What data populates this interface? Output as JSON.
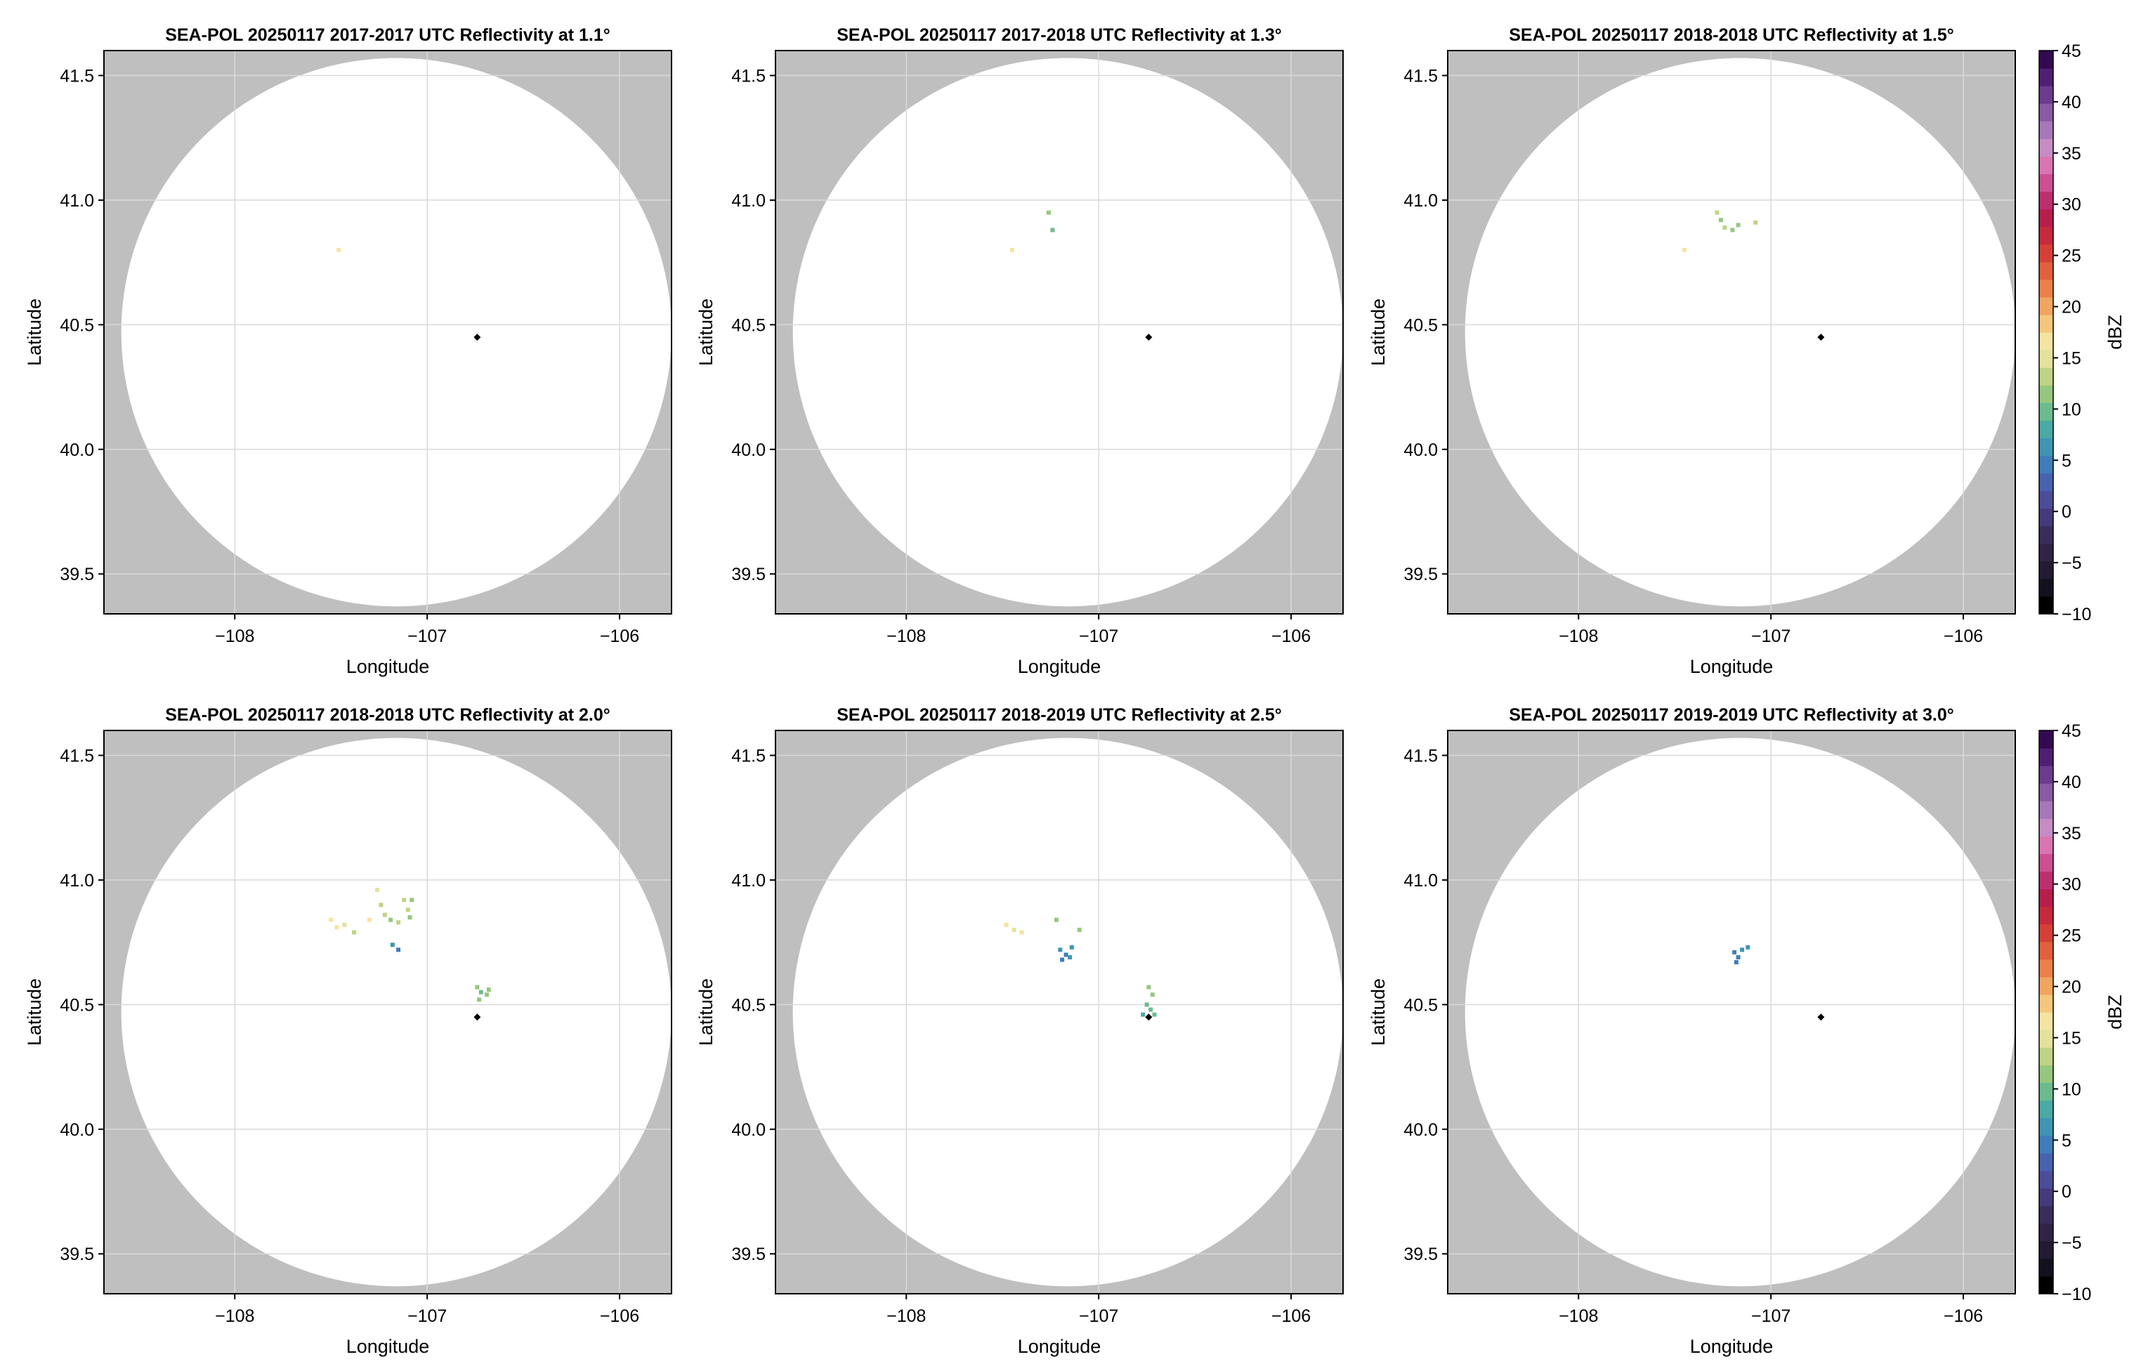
{
  "chart_data": [
    {
      "type": "scatter",
      "title": "SEA-POL 20250117 2017-2017 UTC Reflectivity at 1.1°",
      "xlabel": "Longitude",
      "ylabel": "Latitude",
      "xlim": [
        -108.68,
        -105.73
      ],
      "ylim": [
        39.34,
        41.6
      ],
      "xticks": [
        -108,
        -107,
        -106
      ],
      "yticks": [
        39.5,
        40.0,
        40.5,
        41.0,
        41.5
      ],
      "xtick_labels": [
        "−108",
        "−107",
        "−106"
      ],
      "ytick_labels": [
        "39.5",
        "40.0",
        "40.5",
        "41.0",
        "41.5"
      ],
      "grid": true,
      "radar_location": {
        "lon": -106.74,
        "lat": 40.45
      },
      "coverage": {
        "center_lon": -107.16,
        "center_lat": 40.47,
        "radius_deg_lon": 1.43,
        "radius_deg_lat": 1.1
      },
      "echoes": [
        {
          "lon": -107.46,
          "lat": 40.8,
          "dbz": 16
        }
      ]
    },
    {
      "type": "scatter",
      "title": "SEA-POL 20250117 2017-2018 UTC Reflectivity at 1.3°",
      "xlabel": "Longitude",
      "ylabel": "Latitude",
      "xlim": [
        -108.68,
        -105.73
      ],
      "ylim": [
        39.34,
        41.6
      ],
      "xticks": [
        -108,
        -107,
        -106
      ],
      "yticks": [
        39.5,
        40.0,
        40.5,
        41.0,
        41.5
      ],
      "xtick_labels": [
        "−108",
        "−107",
        "−106"
      ],
      "ytick_labels": [
        "39.5",
        "40.0",
        "40.5",
        "41.0",
        "41.5"
      ],
      "grid": true,
      "radar_location": {
        "lon": -106.74,
        "lat": 40.45
      },
      "coverage": {
        "center_lon": -107.16,
        "center_lat": 40.47,
        "radius_deg_lon": 1.43,
        "radius_deg_lat": 1.1
      },
      "echoes": [
        {
          "lon": -107.45,
          "lat": 40.8,
          "dbz": 16
        },
        {
          "lon": -107.24,
          "lat": 40.88,
          "dbz": 9
        },
        {
          "lon": -107.26,
          "lat": 40.95,
          "dbz": 12
        }
      ]
    },
    {
      "type": "scatter",
      "title": "SEA-POL 20250117 2018-2018 UTC Reflectivity at 1.5°",
      "xlabel": "Longitude",
      "ylabel": "Latitude",
      "xlim": [
        -108.68,
        -105.73
      ],
      "ylim": [
        39.34,
        41.6
      ],
      "xticks": [
        -108,
        -107,
        -106
      ],
      "yticks": [
        39.5,
        40.0,
        40.5,
        41.0,
        41.5
      ],
      "xtick_labels": [
        "−108",
        "−107",
        "−106"
      ],
      "ytick_labels": [
        "39.5",
        "40.0",
        "40.5",
        "41.0",
        "41.5"
      ],
      "grid": true,
      "radar_location": {
        "lon": -106.74,
        "lat": 40.45
      },
      "coverage": {
        "center_lon": -107.16,
        "center_lat": 40.47,
        "radius_deg_lon": 1.43,
        "radius_deg_lat": 1.1
      },
      "echoes": [
        {
          "lon": -107.45,
          "lat": 40.8,
          "dbz": 16
        },
        {
          "lon": -107.28,
          "lat": 40.95,
          "dbz": 14
        },
        {
          "lon": -107.26,
          "lat": 40.92,
          "dbz": 12
        },
        {
          "lon": -107.24,
          "lat": 40.89,
          "dbz": 13
        },
        {
          "lon": -107.2,
          "lat": 40.88,
          "dbz": 11
        },
        {
          "lon": -107.17,
          "lat": 40.9,
          "dbz": 12
        },
        {
          "lon": -107.08,
          "lat": 40.91,
          "dbz": 13
        }
      ]
    },
    {
      "type": "scatter",
      "title": "SEA-POL 20250117 2018-2018 UTC Reflectivity at 2.0°",
      "xlabel": "Longitude",
      "ylabel": "Latitude",
      "xlim": [
        -108.68,
        -105.73
      ],
      "ylim": [
        39.34,
        41.6
      ],
      "xticks": [
        -108,
        -107,
        -106
      ],
      "yticks": [
        39.5,
        40.0,
        40.5,
        41.0,
        41.5
      ],
      "xtick_labels": [
        "−108",
        "−107",
        "−106"
      ],
      "ytick_labels": [
        "39.5",
        "40.0",
        "40.5",
        "41.0",
        "41.5"
      ],
      "grid": true,
      "radar_location": {
        "lon": -106.74,
        "lat": 40.45
      },
      "coverage": {
        "center_lon": -107.16,
        "center_lat": 40.47,
        "radius_deg_lon": 1.43,
        "radius_deg_lat": 1.1
      },
      "echoes": [
        {
          "lon": -107.5,
          "lat": 40.84,
          "dbz": 16
        },
        {
          "lon": -107.47,
          "lat": 40.81,
          "dbz": 17
        },
        {
          "lon": -107.43,
          "lat": 40.82,
          "dbz": 15
        },
        {
          "lon": -107.38,
          "lat": 40.79,
          "dbz": 14
        },
        {
          "lon": -107.3,
          "lat": 40.84,
          "dbz": 16
        },
        {
          "lon": -107.26,
          "lat": 40.96,
          "dbz": 15
        },
        {
          "lon": -107.24,
          "lat": 40.9,
          "dbz": 14
        },
        {
          "lon": -107.22,
          "lat": 40.86,
          "dbz": 13
        },
        {
          "lon": -107.19,
          "lat": 40.84,
          "dbz": 12
        },
        {
          "lon": -107.15,
          "lat": 40.83,
          "dbz": 13
        },
        {
          "lon": -107.1,
          "lat": 40.88,
          "dbz": 14
        },
        {
          "lon": -107.08,
          "lat": 40.92,
          "dbz": 12
        },
        {
          "lon": -107.12,
          "lat": 40.92,
          "dbz": 13
        },
        {
          "lon": -107.09,
          "lat": 40.85,
          "dbz": 11
        },
        {
          "lon": -107.18,
          "lat": 40.74,
          "dbz": 6
        },
        {
          "lon": -107.15,
          "lat": 40.72,
          "dbz": 5
        },
        {
          "lon": -106.74,
          "lat": 40.57,
          "dbz": 11
        },
        {
          "lon": -106.72,
          "lat": 40.55,
          "dbz": 10
        },
        {
          "lon": -106.69,
          "lat": 40.54,
          "dbz": 11
        },
        {
          "lon": -106.73,
          "lat": 40.52,
          "dbz": 12
        },
        {
          "lon": -106.68,
          "lat": 40.56,
          "dbz": 12
        }
      ]
    },
    {
      "type": "scatter",
      "title": "SEA-POL 20250117 2018-2019 UTC Reflectivity at 2.5°",
      "xlabel": "Longitude",
      "ylabel": "Latitude",
      "xlim": [
        -108.68,
        -105.73
      ],
      "ylim": [
        39.34,
        41.6
      ],
      "xticks": [
        -108,
        -107,
        -106
      ],
      "yticks": [
        39.5,
        40.0,
        40.5,
        41.0,
        41.5
      ],
      "xtick_labels": [
        "−108",
        "−107",
        "−106"
      ],
      "ytick_labels": [
        "39.5",
        "40.0",
        "40.5",
        "41.0",
        "41.5"
      ],
      "grid": true,
      "radar_location": {
        "lon": -106.74,
        "lat": 40.45
      },
      "coverage": {
        "center_lon": -107.16,
        "center_lat": 40.47,
        "radius_deg_lon": 1.43,
        "radius_deg_lat": 1.1
      },
      "echoes": [
        {
          "lon": -107.48,
          "lat": 40.82,
          "dbz": 16
        },
        {
          "lon": -107.44,
          "lat": 40.8,
          "dbz": 15
        },
        {
          "lon": -107.4,
          "lat": 40.79,
          "dbz": 16
        },
        {
          "lon": -107.22,
          "lat": 40.84,
          "dbz": 12
        },
        {
          "lon": -107.1,
          "lat": 40.8,
          "dbz": 12
        },
        {
          "lon": -107.2,
          "lat": 40.72,
          "dbz": 6
        },
        {
          "lon": -107.17,
          "lat": 40.7,
          "dbz": 5
        },
        {
          "lon": -107.14,
          "lat": 40.73,
          "dbz": 6
        },
        {
          "lon": -107.19,
          "lat": 40.68,
          "dbz": 4
        },
        {
          "lon": -107.15,
          "lat": 40.69,
          "dbz": 7
        },
        {
          "lon": -106.74,
          "lat": 40.57,
          "dbz": 12
        },
        {
          "lon": -106.72,
          "lat": 40.54,
          "dbz": 11
        },
        {
          "lon": -106.75,
          "lat": 40.5,
          "dbz": 10
        },
        {
          "lon": -106.73,
          "lat": 40.48,
          "dbz": 9
        },
        {
          "lon": -106.77,
          "lat": 40.46,
          "dbz": 8
        },
        {
          "lon": -106.71,
          "lat": 40.46,
          "dbz": 10
        }
      ]
    },
    {
      "type": "scatter",
      "title": "SEA-POL 20250117 2019-2019 UTC Reflectivity at 3.0°",
      "xlabel": "Longitude",
      "ylabel": "Latitude",
      "xlim": [
        -108.68,
        -105.73
      ],
      "ylim": [
        39.34,
        41.6
      ],
      "xticks": [
        -108,
        -107,
        -106
      ],
      "yticks": [
        39.5,
        40.0,
        40.5,
        41.0,
        41.5
      ],
      "xtick_labels": [
        "−108",
        "−107",
        "−106"
      ],
      "ytick_labels": [
        "39.5",
        "40.0",
        "40.5",
        "41.0",
        "41.5"
      ],
      "grid": true,
      "radar_location": {
        "lon": -106.74,
        "lat": 40.45
      },
      "coverage": {
        "center_lon": -107.16,
        "center_lat": 40.47,
        "radius_deg_lon": 1.43,
        "radius_deg_lat": 1.1
      },
      "echoes": [
        {
          "lon": -107.19,
          "lat": 40.71,
          "dbz": 5
        },
        {
          "lon": -107.17,
          "lat": 40.69,
          "dbz": 4
        },
        {
          "lon": -107.15,
          "lat": 40.72,
          "dbz": 6
        },
        {
          "lon": -107.12,
          "lat": 40.73,
          "dbz": 7
        },
        {
          "lon": -107.18,
          "lat": 40.67,
          "dbz": 5
        }
      ]
    }
  ],
  "colorbar": {
    "label": "dBZ",
    "min": -10,
    "max": 45,
    "step": 2.5,
    "tick_values": [
      -10,
      -5,
      0,
      5,
      10,
      15,
      20,
      25,
      30,
      35,
      40,
      45
    ],
    "tick_labels": [
      "−10",
      "−5",
      "0",
      "5",
      "10",
      "15",
      "20",
      "25",
      "30",
      "35",
      "40",
      "45"
    ],
    "colors": [
      "#000000",
      "#14111e",
      "#231a33",
      "#302345",
      "#3a2c5e",
      "#453a7b",
      "#4b4d99",
      "#4763b0",
      "#3f7db8",
      "#3e95b4",
      "#4aaaa5",
      "#6cbb8f",
      "#96c77e",
      "#bfd484",
      "#e2e29c",
      "#f5e3a0",
      "#f5c77a",
      "#f2a55f",
      "#ec8148",
      "#e2603d",
      "#d44038",
      "#c52a3d",
      "#b71e4c",
      "#be2f6e",
      "#cc4f91",
      "#da75b2",
      "#c78cc6",
      "#a877b8",
      "#8a5aa5",
      "#6c3b8e",
      "#4f1f73",
      "#330a52"
    ]
  },
  "colors": {
    "outside_coverage": "#bfbfbf",
    "inside_coverage": "#ffffff",
    "grid": "#dadada",
    "radar_marker": "#000000"
  }
}
